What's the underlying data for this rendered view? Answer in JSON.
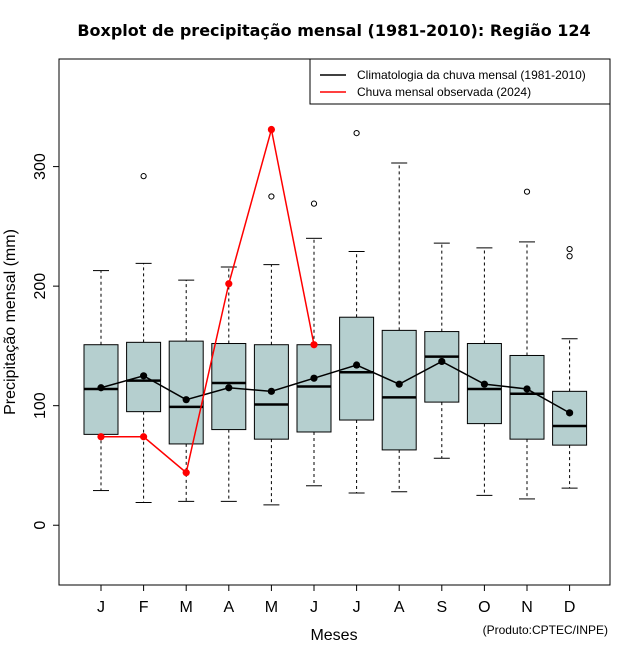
{
  "chart_data": {
    "type": "boxplot",
    "title": "Boxplot de precipitação mensal (1981-2010): Região 124",
    "xlabel": "Meses",
    "ylabel": "Precipitação mensal (mm)",
    "credit": "(Produto:CPTEC/INPE)",
    "ylim": [
      -50,
      390
    ],
    "yticks": [
      0,
      100,
      200,
      300
    ],
    "categories": [
      "J",
      "F",
      "M",
      "A",
      "M",
      "J",
      "J",
      "A",
      "S",
      "O",
      "N",
      "D"
    ],
    "box_color": "#b5cfcf",
    "boxes": [
      {
        "whisker_low": 29,
        "q1": 76,
        "median": 114,
        "q3": 151,
        "whisker_high": 213,
        "outliers": []
      },
      {
        "whisker_low": 19,
        "q1": 95,
        "median": 121,
        "q3": 153,
        "whisker_high": 219,
        "outliers": [
          292
        ]
      },
      {
        "whisker_low": 20,
        "q1": 68,
        "median": 99,
        "q3": 154,
        "whisker_high": 205,
        "outliers": []
      },
      {
        "whisker_low": 20,
        "q1": 80,
        "median": 119,
        "q3": 152,
        "whisker_high": 216,
        "outliers": []
      },
      {
        "whisker_low": 17,
        "q1": 72,
        "median": 101,
        "q3": 151,
        "whisker_high": 218,
        "outliers": [
          275
        ]
      },
      {
        "whisker_low": 33,
        "q1": 78,
        "median": 116,
        "q3": 151,
        "whisker_high": 240,
        "outliers": [
          269
        ]
      },
      {
        "whisker_low": 27,
        "q1": 88,
        "median": 128,
        "q3": 174,
        "whisker_high": 229,
        "outliers": [
          328
        ]
      },
      {
        "whisker_low": 28,
        "q1": 63,
        "median": 107,
        "q3": 163,
        "whisker_high": 303,
        "outliers": []
      },
      {
        "whisker_low": 56,
        "q1": 103,
        "median": 141,
        "q3": 162,
        "whisker_high": 236,
        "outliers": []
      },
      {
        "whisker_low": 25,
        "q1": 85,
        "median": 114,
        "q3": 152,
        "whisker_high": 232,
        "outliers": []
      },
      {
        "whisker_low": 22,
        "q1": 72,
        "median": 110,
        "q3": 142,
        "whisker_high": 237,
        "outliers": [
          279
        ]
      },
      {
        "whisker_low": 31,
        "q1": 67,
        "median": 83,
        "q3": 112,
        "whisker_high": 156,
        "outliers": [
          225,
          231
        ]
      }
    ],
    "series": [
      {
        "name": "Climatologia da chuva mensal (1981-2010)",
        "color": "#000000",
        "values": [
          115,
          125,
          105,
          115,
          112,
          123,
          134,
          118,
          137,
          118,
          114,
          94
        ]
      },
      {
        "name": "Chuva mensal observada (2024)",
        "color": "#ff0000",
        "values": [
          74,
          74,
          44,
          202,
          331,
          151,
          null,
          null,
          null,
          null,
          null,
          null
        ]
      }
    ],
    "legend_position": "top-right"
  }
}
